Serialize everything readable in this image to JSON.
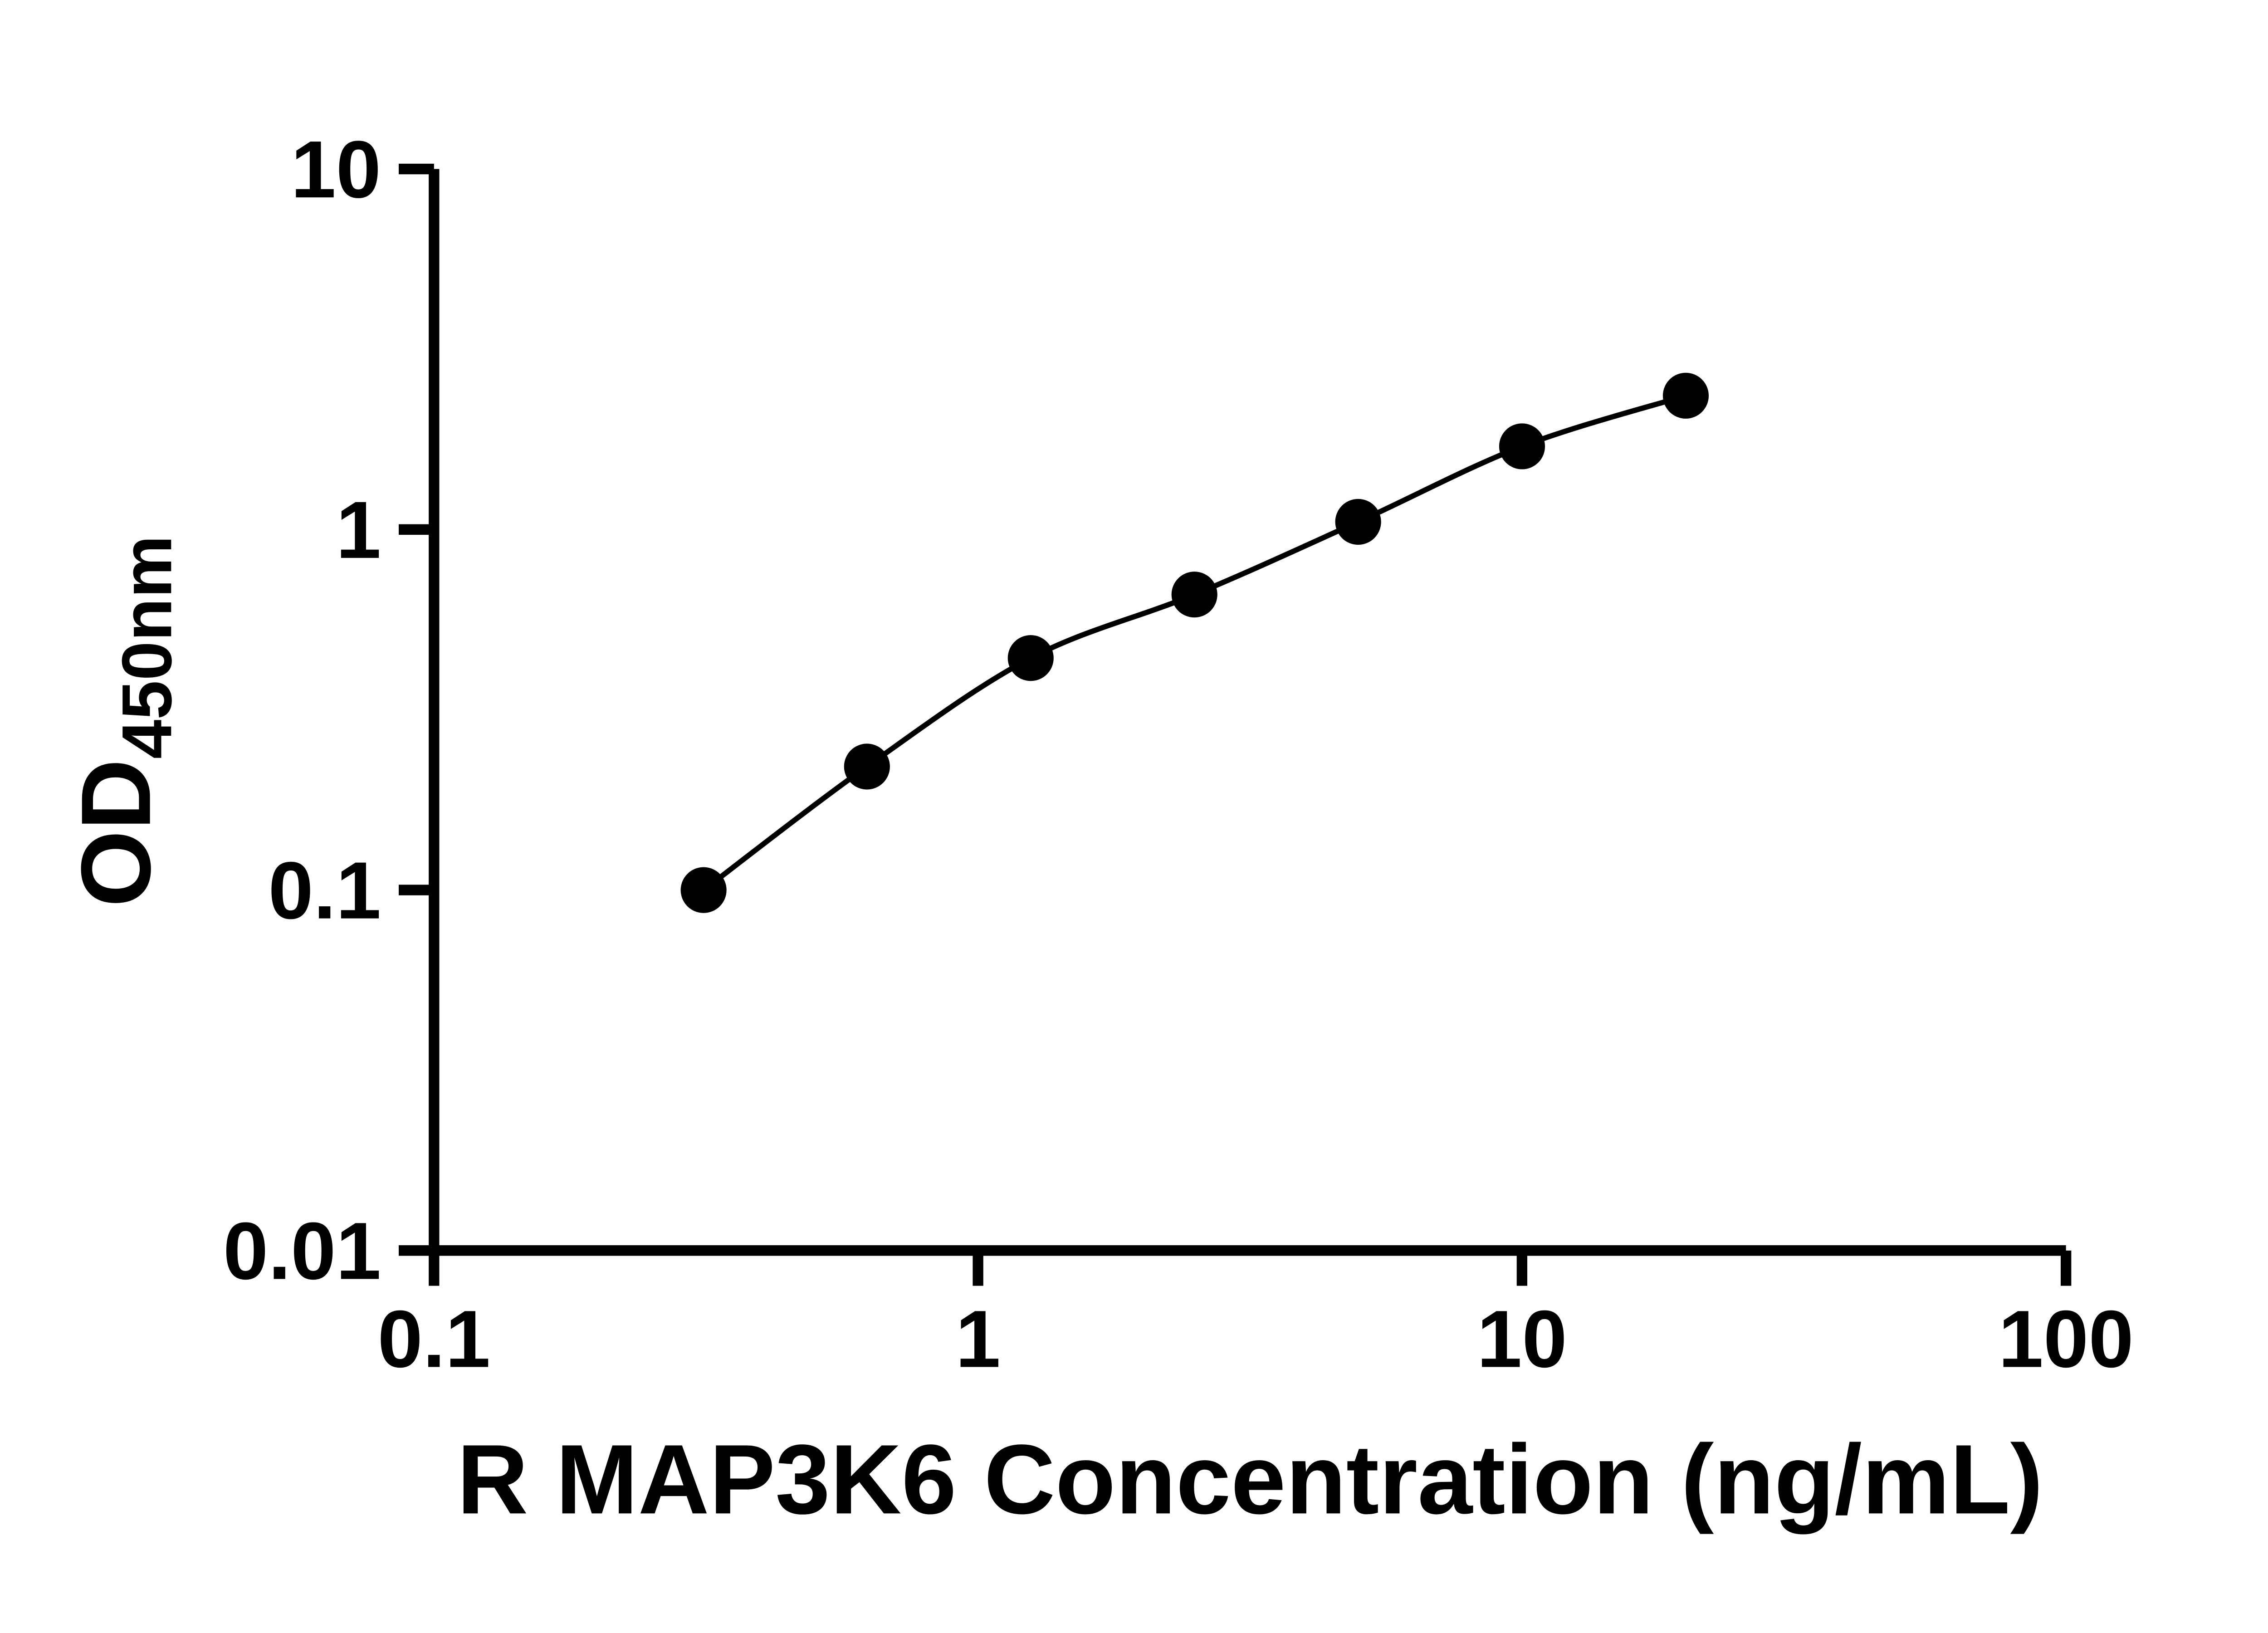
{
  "chart_data": {
    "type": "scatter",
    "title": "",
    "xlabel": "R MAP3K6 Concentration (ng/mL)",
    "ylabel_main": "OD",
    "ylabel_sub": "450nm",
    "xscale": "log",
    "yscale": "log",
    "xlim": [
      0.1,
      100
    ],
    "ylim": [
      0.01,
      10
    ],
    "x_ticks": [
      0.1,
      1,
      10,
      100
    ],
    "x_tick_labels": [
      "0.1",
      "1",
      "10",
      "100"
    ],
    "y_ticks": [
      0.01,
      0.1,
      1,
      10
    ],
    "y_tick_labels": [
      "0.01",
      "0.1",
      "1",
      "10"
    ],
    "grid": "off",
    "legend": "none",
    "fit_line": true,
    "points": {
      "x": [
        0.313,
        0.625,
        1.25,
        2.5,
        5,
        10,
        20
      ],
      "y": [
        0.1,
        0.22,
        0.44,
        0.66,
        1.05,
        1.7,
        2.35
      ]
    },
    "marker_color": "#000000",
    "line_color": "#000000",
    "axis_color": "#000000",
    "background": "#ffffff"
  }
}
